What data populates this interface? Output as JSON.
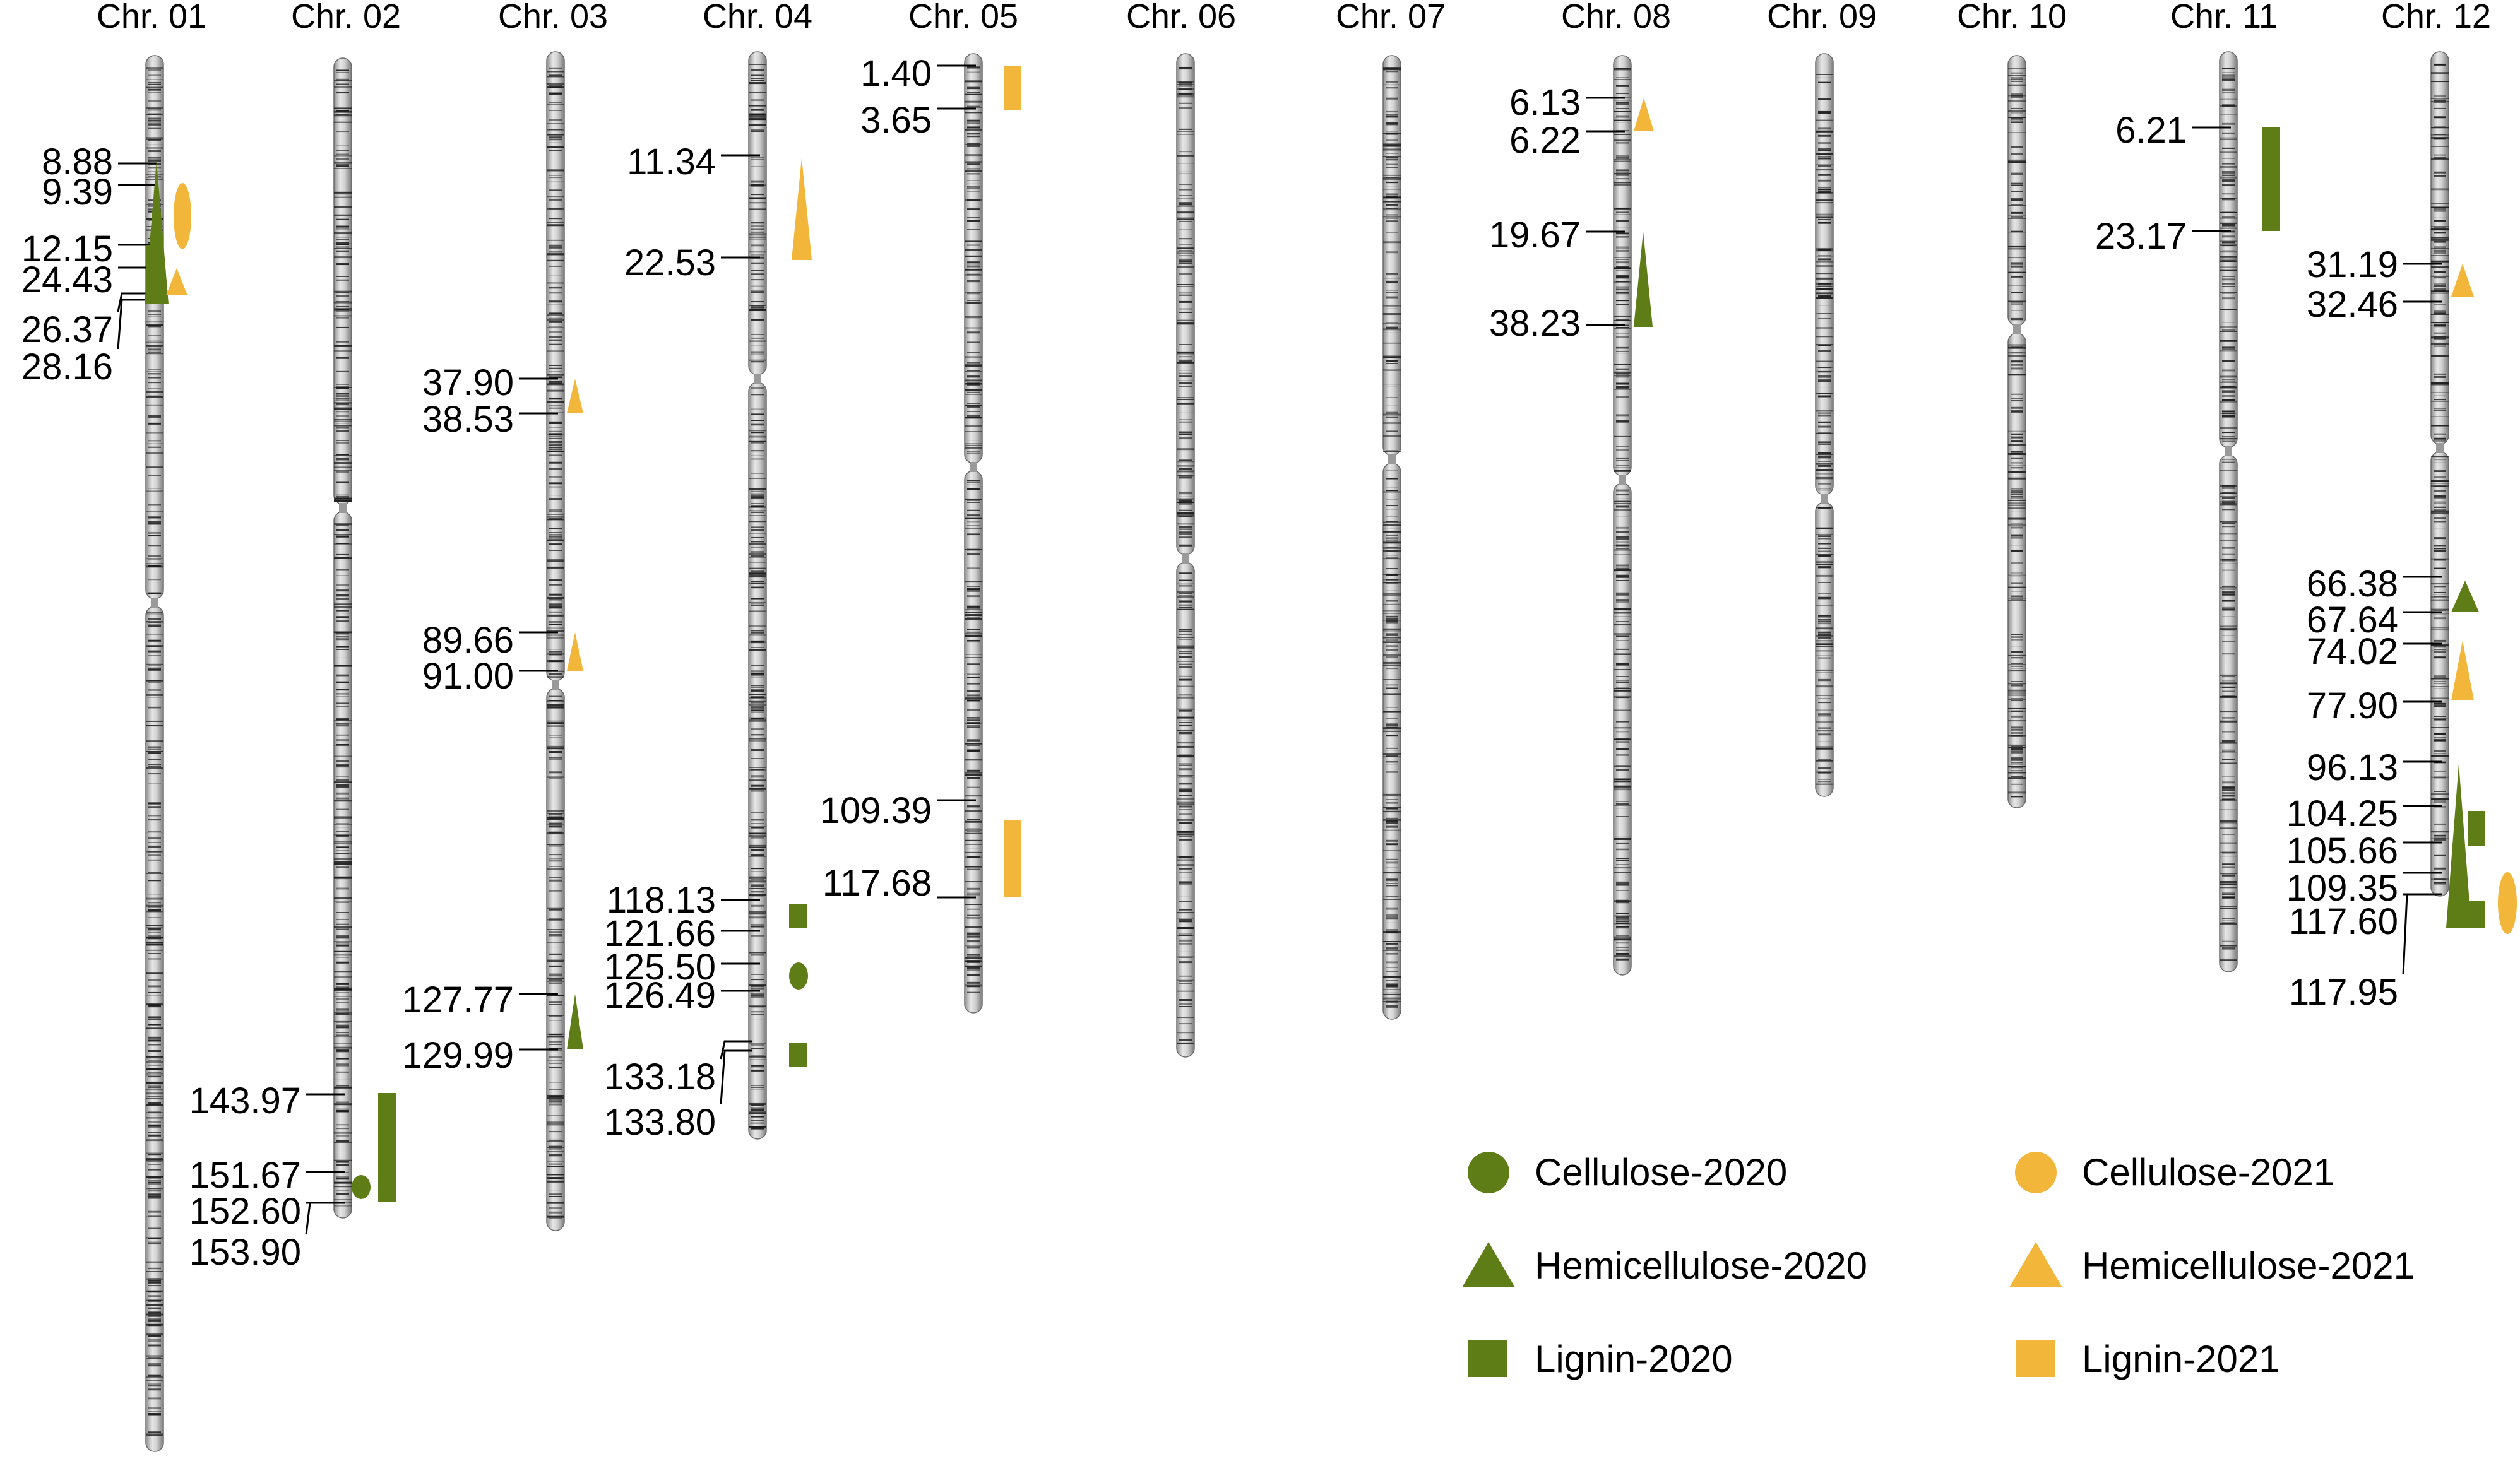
{
  "colors": {
    "trait_2020": "#5e7d16",
    "trait_2021": "#f2b73a",
    "chromosome_body": "#c8c8c8",
    "chromosome_band": "#1c1c1c",
    "label": "#000000"
  },
  "chromosomes": [
    {
      "name": "Chr. 01",
      "length_mb": 185
    },
    {
      "name": "Chr. 02",
      "length_mb": 155
    },
    {
      "name": "Chr. 03",
      "length_mb": 155
    },
    {
      "name": "Chr. 04",
      "length_mb": 144
    },
    {
      "name": "Chr. 05",
      "length_mb": 126
    },
    {
      "name": "Chr. 06",
      "length_mb": 132
    },
    {
      "name": "Chr. 07",
      "length_mb": 127
    },
    {
      "name": "Chr. 08",
      "length_mb": 121
    },
    {
      "name": "Chr. 09",
      "length_mb": 98
    },
    {
      "name": "Chr. 10",
      "length_mb": 99
    },
    {
      "name": "Chr. 11",
      "length_mb": 120
    },
    {
      "name": "Chr. 12",
      "length_mb": 120
    }
  ],
  "positions": [
    {
      "chr": 0,
      "labels": [
        "8.88",
        "9.39",
        "12.15",
        "24.43",
        "26.37",
        "28.16"
      ]
    },
    {
      "chr": 1,
      "labels": [
        "143.97",
        "151.67",
        "152.60",
        "153.90"
      ]
    },
    {
      "chr": 2,
      "labels": [
        "37.90",
        "38.53",
        "89.66",
        "91.00",
        "127.77",
        "129.99"
      ]
    },
    {
      "chr": 3,
      "labels": [
        "11.34",
        "22.53",
        "118.13",
        "121.66",
        "125.50",
        "126.49",
        "133.18",
        "133.80"
      ]
    },
    {
      "chr": 4,
      "labels": [
        "1.40",
        "3.65",
        "109.39",
        "117.68"
      ]
    },
    {
      "chr": 7,
      "labels": [
        "6.13",
        "6.22",
        "19.67",
        "38.23"
      ]
    },
    {
      "chr": 10,
      "labels": [
        "6.21",
        "23.17"
      ]
    },
    {
      "chr": 11,
      "labels": [
        "31.19",
        "32.46",
        "66.38",
        "67.64",
        "74.02",
        "77.90",
        "96.13",
        "104.25",
        "105.66",
        "109.35",
        "117.60",
        "117.95"
      ]
    }
  ],
  "qtl_markers": [
    {
      "chr": 0,
      "trait": "Hemicellulose",
      "year": "2020",
      "from": "8.88",
      "to": "26.37"
    },
    {
      "chr": 0,
      "trait": "Cellulose",
      "year": "2021",
      "from": "9.39",
      "to": "12.15"
    },
    {
      "chr": 0,
      "trait": "Lignin",
      "year": "2020",
      "from": "12.15",
      "to": "28.16"
    },
    {
      "chr": 0,
      "trait": "Hemicellulose",
      "year": "2021",
      "from": "24.43",
      "to": "26.37"
    },
    {
      "chr": 1,
      "trait": "Lignin",
      "year": "2020",
      "from": "143.97",
      "to": "152.60"
    },
    {
      "chr": 1,
      "trait": "Cellulose",
      "year": "2020",
      "from": "151.67",
      "to": "152.60"
    },
    {
      "chr": 2,
      "trait": "Hemicellulose",
      "year": "2021",
      "from": "37.90",
      "to": "38.53"
    },
    {
      "chr": 2,
      "trait": "Hemicellulose",
      "year": "2021",
      "from": "89.66",
      "to": "91.00"
    },
    {
      "chr": 2,
      "trait": "Hemicellulose",
      "year": "2020",
      "from": "127.77",
      "to": "129.99"
    },
    {
      "chr": 3,
      "trait": "Hemicellulose",
      "year": "2021",
      "from": "11.34",
      "to": "22.53"
    },
    {
      "chr": 3,
      "trait": "Lignin",
      "year": "2020",
      "from": "118.13",
      "to": "121.66"
    },
    {
      "chr": 3,
      "trait": "Cellulose",
      "year": "2020",
      "from": "125.50",
      "to": "126.49"
    },
    {
      "chr": 3,
      "trait": "Lignin",
      "year": "2020",
      "from": "133.18",
      "to": "133.80"
    },
    {
      "chr": 4,
      "trait": "Lignin",
      "year": "2021",
      "from": "1.40",
      "to": "3.65"
    },
    {
      "chr": 4,
      "trait": "Lignin",
      "year": "2021",
      "from": "109.39",
      "to": "117.68"
    },
    {
      "chr": 7,
      "trait": "Hemicellulose",
      "year": "2021",
      "from": "6.13",
      "to": "6.22"
    },
    {
      "chr": 7,
      "trait": "Hemicellulose",
      "year": "2020",
      "from": "19.67",
      "to": "38.23"
    },
    {
      "chr": 10,
      "trait": "Lignin",
      "year": "2020",
      "from": "6.21",
      "to": "23.17"
    },
    {
      "chr": 11,
      "trait": "Hemicellulose",
      "year": "2021",
      "from": "31.19",
      "to": "32.46"
    },
    {
      "chr": 11,
      "trait": "Hemicellulose",
      "year": "2020",
      "from": "66.38",
      "to": "67.64"
    },
    {
      "chr": 11,
      "trait": "Hemicellulose",
      "year": "2021",
      "from": "74.02",
      "to": "77.90"
    },
    {
      "chr": 11,
      "trait": "Hemicellulose",
      "year": "2020",
      "from": "96.13",
      "to": "117.60"
    },
    {
      "chr": 11,
      "trait": "Lignin",
      "year": "2020",
      "from": "104.25",
      "to": "105.66"
    },
    {
      "chr": 11,
      "trait": "Lignin",
      "year": "2020",
      "from": "109.35",
      "to": "117.60"
    },
    {
      "chr": 11,
      "trait": "Cellulose",
      "year": "2021",
      "from": "109.35",
      "to": "117.95"
    }
  ],
  "legend": [
    {
      "label": "Cellulose-2020",
      "shape": "circle",
      "year": "2020"
    },
    {
      "label": "Hemicellulose-2020",
      "shape": "triangle",
      "year": "2020"
    },
    {
      "label": "Lignin-2020",
      "shape": "square",
      "year": "2020"
    },
    {
      "label": "Cellulose-2021",
      "shape": "circle",
      "year": "2021"
    },
    {
      "label": "Hemicellulose-2021",
      "shape": "triangle",
      "year": "2021"
    },
    {
      "label": "Lignin-2021",
      "shape": "square",
      "year": "2021"
    }
  ]
}
